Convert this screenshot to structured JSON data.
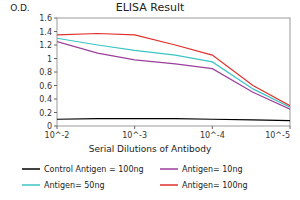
{
  "chart_data": {
    "type": "line",
    "title": "ELISA Result",
    "y_label": "O.D.",
    "x_label": "Serial Dilutions of Antibody",
    "x": [
      0.01,
      0.003,
      0.001,
      0.0003,
      0.0001,
      3e-05,
      1e-05
    ],
    "series": [
      {
        "name": "Control Antigen = 100ng",
        "color": "#000000",
        "values": [
          0.1,
          0.11,
          0.11,
          0.11,
          0.1,
          0.09,
          0.08
        ]
      },
      {
        "name": "Antigen= 10ng",
        "color": "#9b3f9b",
        "values": [
          1.25,
          1.08,
          0.98,
          0.92,
          0.85,
          0.5,
          0.25
        ]
      },
      {
        "name": "Antigen= 50ng",
        "color": "#3cc4c4",
        "values": [
          1.3,
          1.2,
          1.12,
          1.05,
          0.95,
          0.55,
          0.28
        ]
      },
      {
        "name": "Antigen= 100ng",
        "color": "#e0302c",
        "values": [
          1.35,
          1.37,
          1.35,
          1.2,
          1.05,
          0.6,
          0.3
        ]
      }
    ],
    "log": "x",
    "xlim": [
      0.01,
      1e-05
    ],
    "xticks": [
      {
        "value": 0.01,
        "label": "10^-2"
      },
      {
        "value": 0.001,
        "label": "10^-3"
      },
      {
        "value": 0.0001,
        "label": "10^-4"
      },
      {
        "value": 1e-05,
        "label": "10^-5"
      }
    ],
    "ylim": [
      0,
      1.6
    ],
    "yticks": [
      0,
      0.2,
      0.4,
      0.6,
      0.8,
      1,
      1.2,
      1.4,
      1.6
    ],
    "grid": false,
    "legend": "bottom"
  }
}
